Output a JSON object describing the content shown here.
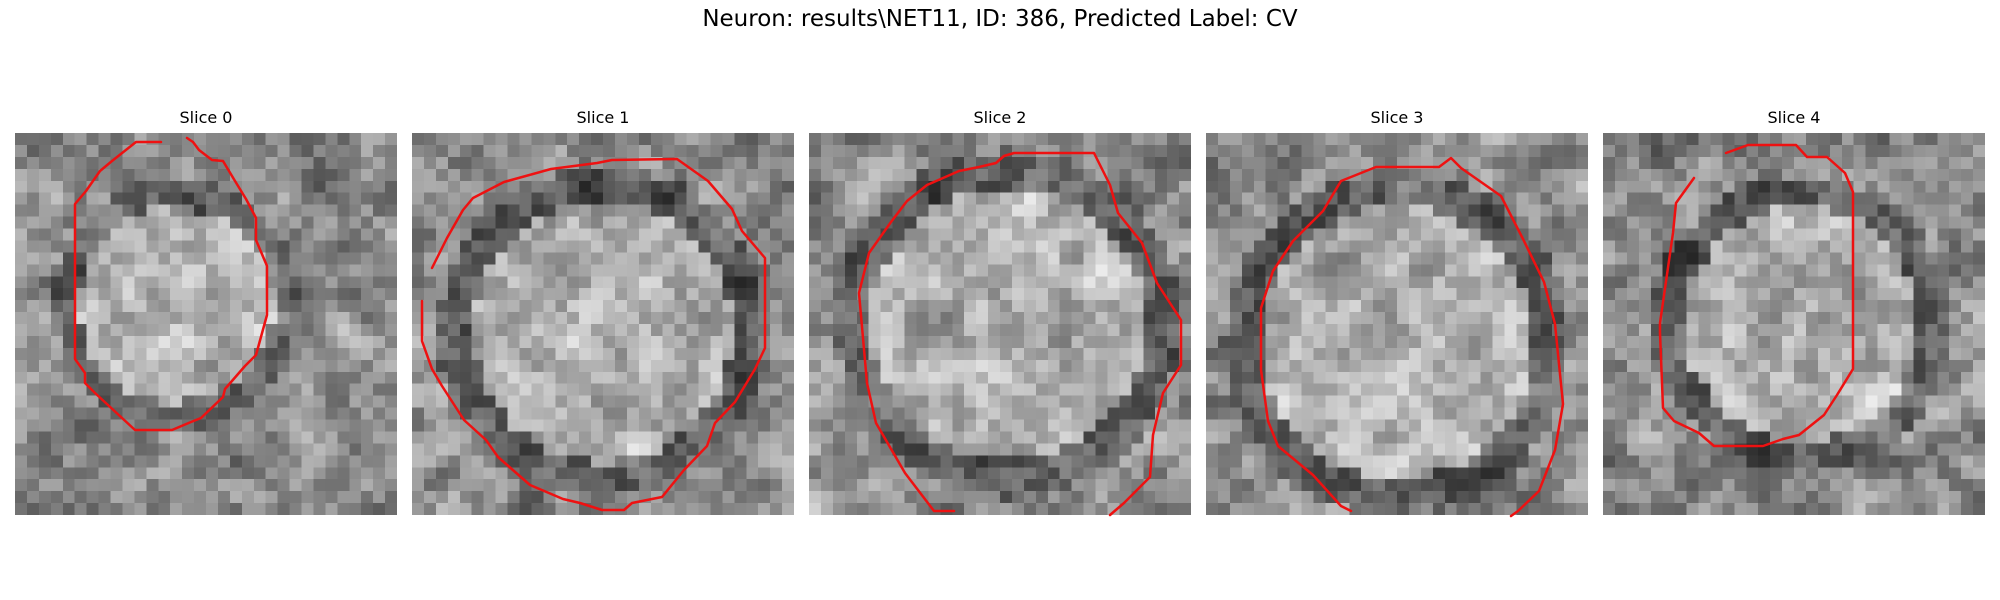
{
  "figure": {
    "title": "Neuron: results\\NET11, ID: 386, Predicted Label: CV"
  },
  "panels": [
    {
      "title": "Slice 0"
    },
    {
      "title": "Slice 1"
    },
    {
      "title": "Slice 2"
    },
    {
      "title": "Slice 3"
    },
    {
      "title": "Slice 4"
    }
  ],
  "colors": {
    "contour": "#ee1111",
    "colormap": "gray"
  }
}
